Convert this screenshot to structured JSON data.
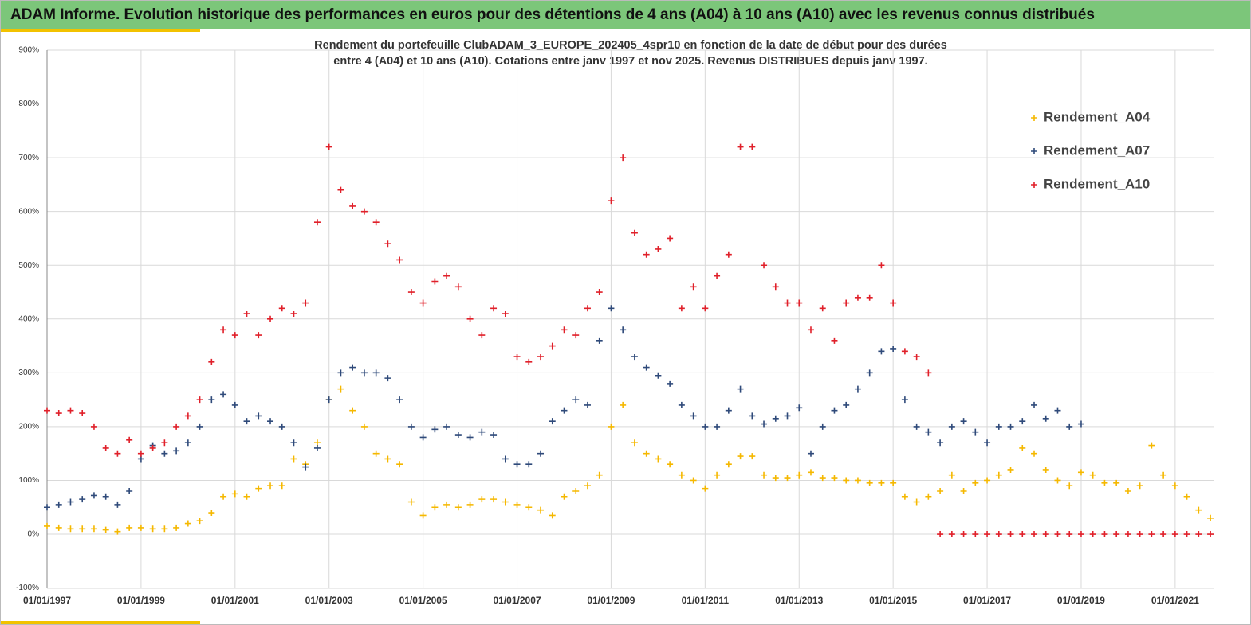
{
  "header": {
    "title": "ADAM Informe. Evolution historique des performances en euros pour des détentions de 4 ans (A04) à 10 ans (A10) avec les revenus connus distribués"
  },
  "chart_data": {
    "type": "scatter",
    "title_lines": [
      "Rendement du portefeuille ClubADAM_3_EUROPE_202405_4spr10  en fonction de la date de début pour des durées",
      "entre 4 (A04) et 10 ans (A10). Cotations entre janv 1997 et nov 2025. Revenus DISTRIBUES depuis janv 1997."
    ],
    "x": [
      "01/01/1997",
      "01/04/1997",
      "01/07/1997",
      "01/10/1997",
      "01/01/1998",
      "01/04/1998",
      "01/07/1998",
      "01/10/1998",
      "01/01/1999",
      "01/04/1999",
      "01/07/1999",
      "01/10/1999",
      "01/01/2000",
      "01/04/2000",
      "01/07/2000",
      "01/10/2000",
      "01/01/2001",
      "01/04/2001",
      "01/07/2001",
      "01/10/2001",
      "01/01/2002",
      "01/04/2002",
      "01/07/2002",
      "01/10/2002",
      "01/01/2003",
      "01/04/2003",
      "01/07/2003",
      "01/10/2003",
      "01/01/2004",
      "01/04/2004",
      "01/07/2004",
      "01/10/2004",
      "01/01/2005",
      "01/04/2005",
      "01/07/2005",
      "01/10/2005",
      "01/01/2006",
      "01/04/2006",
      "01/07/2006",
      "01/10/2006",
      "01/01/2007",
      "01/04/2007",
      "01/07/2007",
      "01/10/2007",
      "01/01/2008",
      "01/04/2008",
      "01/07/2008",
      "01/10/2008",
      "01/01/2009",
      "01/04/2009",
      "01/07/2009",
      "01/10/2009",
      "01/01/2010",
      "01/04/2010",
      "01/07/2010",
      "01/10/2010",
      "01/01/2011",
      "01/04/2011",
      "01/07/2011",
      "01/10/2011",
      "01/01/2012",
      "01/04/2012",
      "01/07/2012",
      "01/10/2012",
      "01/01/2013",
      "01/04/2013",
      "01/07/2013",
      "01/10/2013",
      "01/01/2014",
      "01/04/2014",
      "01/07/2014",
      "01/10/2014",
      "01/01/2015",
      "01/04/2015",
      "01/07/2015",
      "01/10/2015",
      "01/01/2016",
      "01/04/2016",
      "01/07/2016",
      "01/10/2016",
      "01/01/2017",
      "01/04/2017",
      "01/07/2017",
      "01/10/2017",
      "01/01/2018",
      "01/04/2018",
      "01/07/2018",
      "01/10/2018",
      "01/01/2019",
      "01/04/2019",
      "01/07/2019",
      "01/10/2019",
      "01/01/2020",
      "01/04/2020",
      "01/07/2020",
      "01/10/2020",
      "01/01/2021",
      "01/04/2021",
      "01/07/2021",
      "01/10/2021"
    ],
    "series": [
      {
        "name": "Rendement_A04",
        "color": "#f5b800",
        "values": [
          15,
          12,
          10,
          10,
          10,
          8,
          5,
          12,
          12,
          10,
          10,
          12,
          20,
          25,
          40,
          70,
          75,
          70,
          85,
          90,
          90,
          140,
          130,
          170,
          250,
          270,
          230,
          200,
          150,
          140,
          130,
          60,
          35,
          50,
          55,
          50,
          55,
          65,
          65,
          60,
          55,
          50,
          45,
          35,
          70,
          80,
          90,
          110,
          200,
          240,
          170,
          150,
          140,
          130,
          110,
          100,
          85,
          110,
          130,
          145,
          145,
          110,
          105,
          105,
          110,
          115,
          105,
          105,
          100,
          100,
          95,
          95,
          95,
          70,
          60,
          70,
          80,
          110,
          80,
          95,
          100,
          110,
          120,
          160,
          150,
          120,
          100,
          90,
          115,
          110,
          95,
          95,
          80,
          90,
          165,
          110,
          90,
          70,
          45,
          30
        ]
      },
      {
        "name": "Rendement_A07",
        "color": "#2f4a7a",
        "values": [
          50,
          55,
          60,
          65,
          72,
          70,
          55,
          80,
          140,
          165,
          150,
          155,
          170,
          200,
          250,
          260,
          240,
          210,
          220,
          210,
          200,
          170,
          125,
          160,
          250,
          300,
          310,
          300,
          300,
          290,
          250,
          200,
          180,
          195,
          200,
          185,
          180,
          190,
          185,
          140,
          130,
          130,
          150,
          210,
          230,
          250,
          240,
          360,
          420,
          380,
          330,
          310,
          295,
          280,
          240,
          220,
          200,
          200,
          230,
          270,
          220,
          205,
          215,
          220,
          235,
          150,
          200,
          230,
          240,
          270,
          300,
          340,
          345,
          250,
          200,
          190,
          170,
          200,
          210,
          190,
          170,
          200,
          200,
          210,
          240,
          215,
          230,
          200,
          205,
          null,
          null,
          null,
          null,
          null,
          null,
          null,
          null,
          null,
          null,
          null
        ]
      },
      {
        "name": "Rendement_A10",
        "color": "#e0202a",
        "values": [
          230,
          225,
          230,
          225,
          200,
          160,
          150,
          175,
          150,
          160,
          170,
          200,
          220,
          250,
          320,
          380,
          370,
          410,
          370,
          400,
          420,
          410,
          430,
          580,
          720,
          640,
          610,
          600,
          580,
          540,
          510,
          450,
          430,
          470,
          480,
          460,
          400,
          370,
          420,
          410,
          330,
          320,
          330,
          350,
          380,
          370,
          420,
          450,
          620,
          700,
          560,
          520,
          530,
          550,
          420,
          460,
          420,
          480,
          520,
          720,
          720,
          500,
          460,
          430,
          430,
          380,
          420,
          360,
          430,
          440,
          440,
          500,
          430,
          340,
          330,
          300,
          0,
          0,
          0,
          0,
          0,
          0,
          0,
          0,
          0,
          0,
          0,
          0,
          0,
          0,
          0,
          0,
          0,
          0,
          0,
          0,
          0,
          0,
          0,
          0
        ]
      }
    ],
    "xlim": [
      "01/01/1997",
      "01/11/2021"
    ],
    "xticks": [
      "01/01/1997",
      "01/01/1999",
      "01/01/2001",
      "01/01/2003",
      "01/01/2005",
      "01/01/2007",
      "01/01/2009",
      "01/01/2011",
      "01/01/2013",
      "01/01/2015",
      "01/01/2017",
      "01/01/2019",
      "01/01/2021"
    ],
    "ylim": [
      -100,
      900
    ],
    "yticks": [
      {
        "value": -100,
        "label": "-100%"
      },
      {
        "value": 0,
        "label": "0%"
      },
      {
        "value": 100,
        "label": "100%"
      },
      {
        "value": 200,
        "label": "200%"
      },
      {
        "value": 300,
        "label": "300%"
      },
      {
        "value": 400,
        "label": "400%"
      },
      {
        "value": 500,
        "label": "500%"
      },
      {
        "value": 600,
        "label": "600%"
      },
      {
        "value": 700,
        "label": "700%"
      },
      {
        "value": 800,
        "label": "800%"
      },
      {
        "value": 900,
        "label": "900%"
      }
    ],
    "grid": true,
    "legend": "top-right"
  }
}
